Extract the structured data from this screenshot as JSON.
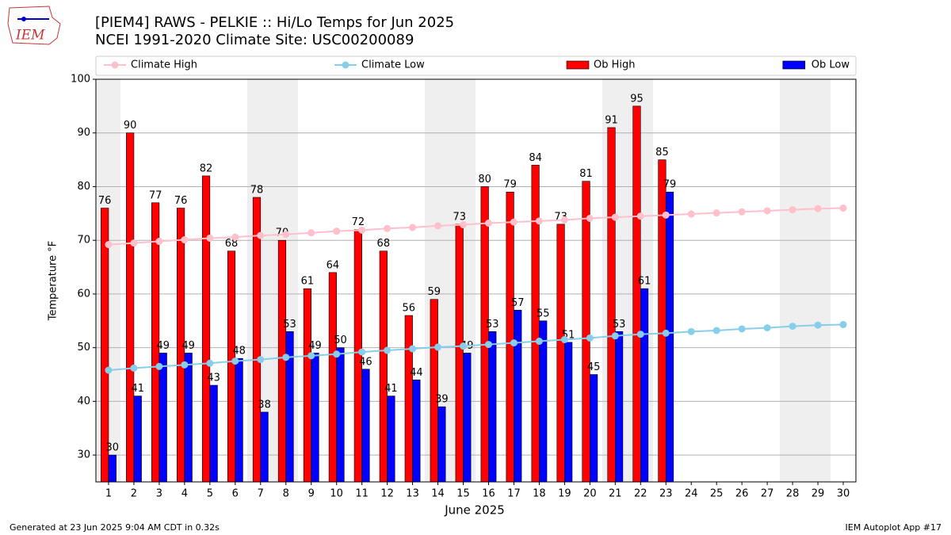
{
  "logo_text": "IEM",
  "footer_left": "Generated at 23 Jun 2025 9:04 AM CDT in 0.32s",
  "footer_right": "IEM Autoplot App #17",
  "chart_data": {
    "type": "bar_line",
    "title": "[PIEM4] RAWS - PELKIE :: Hi/Lo Temps for Jun 2025",
    "subtitle": "NCEI 1991-2020 Climate Site: USC00200089",
    "x_label": "June 2025",
    "y_label": "Temperature °F",
    "x": [
      1,
      2,
      3,
      4,
      5,
      6,
      7,
      8,
      9,
      10,
      11,
      12,
      13,
      14,
      15,
      16,
      17,
      18,
      19,
      20,
      21,
      22,
      23,
      24,
      25,
      26,
      27,
      28,
      29,
      30
    ],
    "xlim": [
      0.5,
      30.5
    ],
    "xticks": [
      1,
      2,
      3,
      4,
      5,
      6,
      7,
      8,
      9,
      10,
      11,
      12,
      13,
      14,
      15,
      16,
      17,
      18,
      19,
      20,
      21,
      22,
      23,
      24,
      25,
      26,
      27,
      28,
      29,
      30
    ],
    "ylim": [
      25,
      100
    ],
    "yticks": [
      30,
      40,
      50,
      60,
      70,
      80,
      90,
      100
    ],
    "grid": true,
    "series": [
      {
        "name": "Climate High",
        "kind": "line",
        "color": "#ffc0cb",
        "values": [
          69.2,
          69.5,
          69.8,
          70.1,
          70.4,
          70.6,
          70.9,
          71.1,
          71.4,
          71.7,
          71.9,
          72.2,
          72.4,
          72.7,
          72.9,
          73.2,
          73.4,
          73.6,
          73.8,
          74.1,
          74.3,
          74.5,
          74.7,
          74.9,
          75.1,
          75.3,
          75.5,
          75.7,
          75.9,
          76.0
        ]
      },
      {
        "name": "Climate Low",
        "kind": "line",
        "color": "#87ceeb",
        "values": [
          45.8,
          46.2,
          46.5,
          46.8,
          47.1,
          47.5,
          47.8,
          48.2,
          48.5,
          48.8,
          49.2,
          49.5,
          49.8,
          50.1,
          50.3,
          50.6,
          50.9,
          51.2,
          51.5,
          51.8,
          52.2,
          52.5,
          52.7,
          53.0,
          53.2,
          53.5,
          53.7,
          54.0,
          54.2,
          54.3
        ]
      },
      {
        "name": "Ob High",
        "kind": "bar",
        "color": "#ff0000",
        "values": [
          76,
          90,
          77,
          76,
          82,
          68,
          78,
          70,
          61,
          64,
          72,
          68,
          56,
          59,
          73,
          80,
          79,
          84,
          73,
          81,
          91,
          95,
          85,
          null,
          null,
          null,
          null,
          null,
          null,
          null
        ]
      },
      {
        "name": "Ob Low",
        "kind": "bar",
        "color": "#0000ff",
        "values": [
          30,
          41,
          49,
          49,
          43,
          48,
          38,
          53,
          49,
          50,
          46,
          41,
          44,
          39,
          49,
          53,
          57,
          55,
          51,
          45,
          53,
          61,
          79,
          null,
          null,
          null,
          null,
          null,
          null,
          null
        ]
      }
    ]
  }
}
